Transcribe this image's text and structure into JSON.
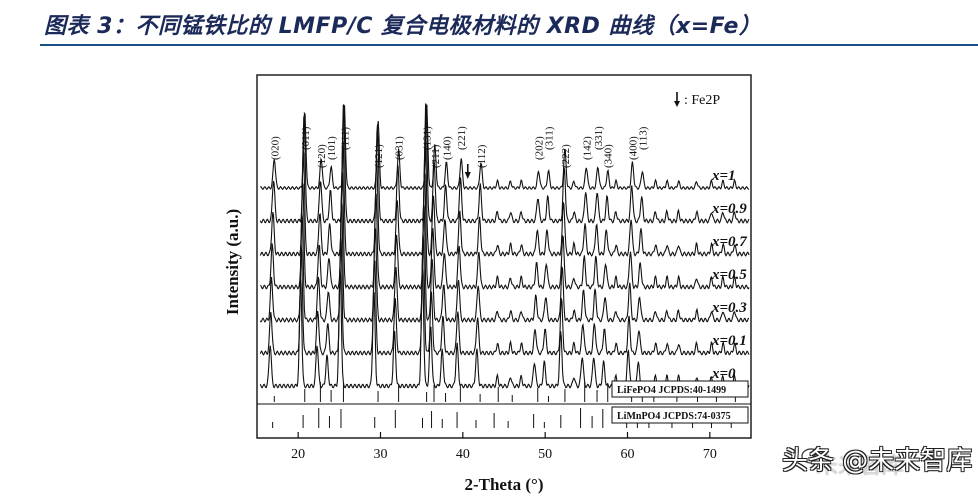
{
  "header": {
    "title": "图表 3：不同锰铁比的 LMFP/C 复合电极材料的 XRD 曲线（x=Fe）"
  },
  "watermark": {
    "text": "头条 @未来智库",
    "faded_text": "未来智库"
  },
  "chart_data": {
    "type": "line",
    "title": "",
    "xlabel": "2-Theta (°)",
    "ylabel": "Intensity (a.u.)",
    "xlim": [
      15,
      75
    ],
    "xticks": [
      20,
      30,
      40,
      50,
      60,
      70
    ],
    "grid": false,
    "legend_placement": "top-right",
    "legend_text": "↓ : Fe2P",
    "peaks": [
      {
        "label": "(020)",
        "x": 17.1
      },
      {
        "label": "(011)",
        "x": 20.8
      },
      {
        "label": "(120)",
        "x": 22.8
      },
      {
        "label": "(101)",
        "x": 24.0
      },
      {
        "label": "(111)",
        "x": 25.6
      },
      {
        "label": "(121)",
        "x": 29.7
      },
      {
        "label": "(031)",
        "x": 32.2
      },
      {
        "label": "(131)",
        "x": 35.6
      },
      {
        "label": "(211)",
        "x": 36.6
      },
      {
        "label": "(140)",
        "x": 38.0
      },
      {
        "label": "(221)",
        "x": 39.8
      },
      {
        "label": "(112)",
        "x": 42.2
      },
      {
        "label": "(202)",
        "x": 49.2
      },
      {
        "label": "(311)",
        "x": 50.4
      },
      {
        "label": "(222)",
        "x": 52.4
      },
      {
        "label": "(142)",
        "x": 55.0
      },
      {
        "label": "(331)",
        "x": 56.4
      },
      {
        "label": "(340)",
        "x": 57.6
      },
      {
        "label": "(400)",
        "x": 60.6
      },
      {
        "label": "(113)",
        "x": 61.8
      }
    ],
    "fe2p_marker_x": 40.6,
    "series": [
      {
        "name": "x=1"
      },
      {
        "name": "x=0.9"
      },
      {
        "name": "x=0.7"
      },
      {
        "name": "x=0.5"
      },
      {
        "name": "x=0.3"
      },
      {
        "name": "x=0.1"
      },
      {
        "name": "x=0"
      }
    ],
    "reference_patterns": [
      {
        "name": "LiFePO4  JCPDS:40-1499"
      },
      {
        "name": "LiMnPO4  JCPDS:74-0375"
      }
    ]
  }
}
